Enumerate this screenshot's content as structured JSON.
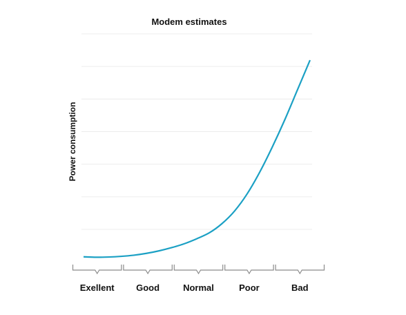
{
  "chart_data": {
    "type": "line",
    "title": "Modem estimates",
    "ylabel": "Power consumption",
    "xlabel": "",
    "categories": [
      "Exellent",
      "Good",
      "Normal",
      "Poor",
      "Bad"
    ],
    "x": [
      0,
      0.25,
      0.5,
      0.75,
      1,
      1.25,
      1.5,
      1.75,
      2,
      2.25,
      2.5,
      2.75,
      3,
      3.25,
      3.5,
      3.75,
      4,
      4.25,
      4.5
    ],
    "values": [
      2.5,
      2.3,
      2.4,
      2.7,
      3.2,
      4.0,
      5.1,
      6.5,
      8.2,
      10.4,
      13.0,
      17.0,
      22.5,
      30.0,
      39.5,
      50.5,
      62.5,
      75.5,
      88.5
    ],
    "ylim": [
      0,
      100
    ],
    "grid": true,
    "y_tick_labels_shown": false,
    "line_color": "#1ba0c4"
  }
}
